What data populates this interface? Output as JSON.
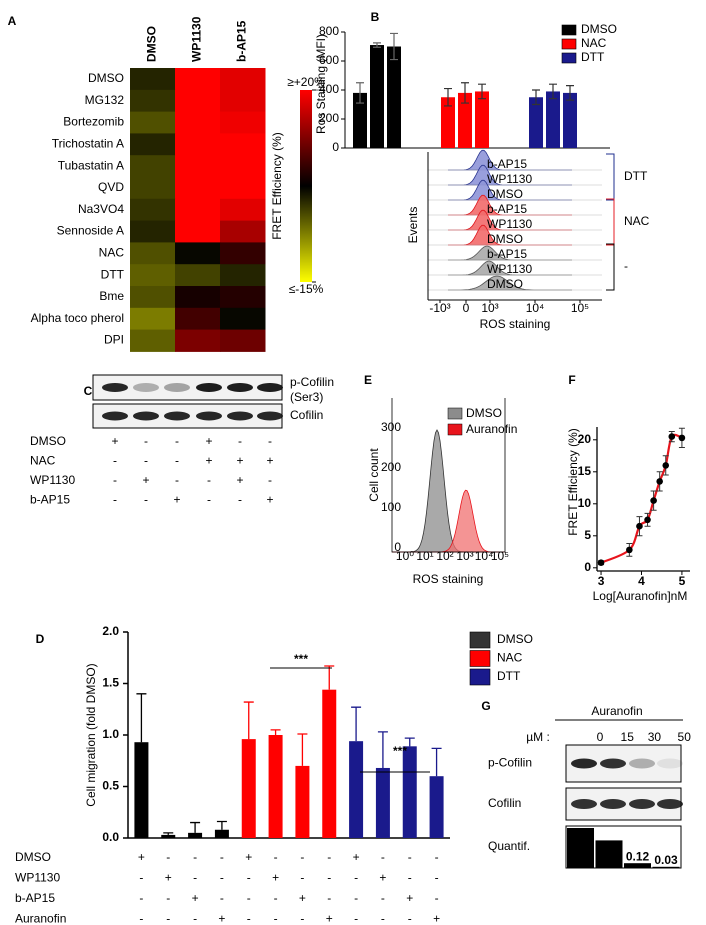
{
  "panel_labels": [
    "A",
    "B",
    "C",
    "D",
    "E",
    "F",
    "G"
  ],
  "chart_data": [
    {
      "type": "heatmap",
      "columns": [
        "DMSO",
        "WP1130",
        "b-AP15"
      ],
      "rows": [
        "DMSO",
        "MG132",
        "Bortezomib",
        "Trichostatin A",
        "Tubastatin A",
        "QVD",
        "Na3VO4",
        "Sennoside A",
        "NAC",
        "DTT",
        "Bme",
        "Alpha toco pherol",
        "DPI"
      ],
      "values": [
        [
          0,
          20,
          18
        ],
        [
          -1,
          20,
          18
        ],
        [
          -3,
          20,
          19
        ],
        [
          0,
          20,
          20
        ],
        [
          -2,
          20,
          20
        ],
        [
          -2,
          20,
          20
        ],
        [
          -1,
          20,
          18
        ],
        [
          0,
          20,
          14
        ],
        [
          -3,
          2,
          6
        ],
        [
          -4,
          -2,
          0
        ],
        [
          -3,
          4,
          5
        ],
        [
          -6,
          7,
          2
        ],
        [
          -4,
          11,
          10
        ]
      ],
      "zlim": [
        -15,
        20
      ],
      "colors": [
        "#ffff00",
        "#000000",
        "#ff0000"
      ],
      "colorbar_ticks": [
        {
          "value": 20,
          "label": "≥+20%"
        },
        {
          "value": -15,
          "label": "≤-15%"
        }
      ],
      "colorbar_label": "FRET Efficiency (%)"
    },
    {
      "type": "bar",
      "ylabel": "Ros Staining (MFI)",
      "ylim": [
        0,
        800
      ],
      "yticks": [
        0,
        200,
        400,
        600,
        800
      ],
      "series": [
        {
          "name": "DMSO",
          "color": "#000000",
          "values": [
            380,
            710,
            700
          ],
          "errors": [
            70,
            15,
            90
          ]
        },
        {
          "name": "NAC",
          "color": "#ff0000",
          "values": [
            350,
            380,
            390
          ],
          "errors": [
            60,
            70,
            50
          ]
        },
        {
          "name": "DTT",
          "color": "#1a1a8c",
          "values": [
            350,
            390,
            380
          ],
          "errors": [
            50,
            50,
            50
          ]
        }
      ]
    },
    {
      "type": "bar",
      "ylabel": "Cell migration (fold DMSO)",
      "ylim": [
        0,
        2
      ],
      "yticks": [
        {
          "value": 0,
          "label": "0.0"
        },
        {
          "value": 0.5,
          "label": "0.5"
        },
        {
          "value": 1,
          "label": "1.0"
        },
        {
          "value": 1.5,
          "label": "1.5"
        },
        {
          "value": 2,
          "label": "2.0"
        }
      ],
      "values": [
        0.93,
        0.03,
        0.05,
        0.08,
        0.96,
        1.0,
        0.7,
        1.44,
        0.94,
        0.68,
        0.89,
        0.6
      ],
      "errors": [
        0.47,
        0.02,
        0.1,
        0.08,
        0.36,
        0.05,
        0.31,
        0.23,
        0.33,
        0.35,
        0.08,
        0.27
      ],
      "colors": [
        "#000000",
        "#000000",
        "#000000",
        "#000000",
        "#ff0000",
        "#ff0000",
        "#ff0000",
        "#ff0000",
        "#1a1a8c",
        "#1a1a8c",
        "#1a1a8c",
        "#1a1a8c"
      ],
      "legend": [
        {
          "name": "DMSO",
          "color": "#333333"
        },
        {
          "name": "NAC",
          "color": "#ff0000"
        },
        {
          "name": "DTT",
          "color": "#1a1a8c"
        }
      ],
      "annotations": [
        "***",
        "***"
      ],
      "treatments": [
        {
          "name": "DMSO",
          "signs": [
            "+",
            "-",
            "-",
            "-",
            "+",
            "-",
            "-",
            "-",
            "+",
            "-",
            "-",
            "-"
          ]
        },
        {
          "name": "WP1130",
          "signs": [
            "-",
            "+",
            "-",
            "-",
            "-",
            "+",
            "-",
            "-",
            "-",
            "+",
            "-",
            "-"
          ]
        },
        {
          "name": "b-AP15",
          "signs": [
            "-",
            "-",
            "+",
            "-",
            "-",
            "-",
            "+",
            "-",
            "-",
            "-",
            "+",
            "-"
          ]
        },
        {
          "name": "Auranofin",
          "signs": [
            "-",
            "-",
            "-",
            "+",
            "-",
            "-",
            "-",
            "+",
            "-",
            "-",
            "-",
            "+"
          ]
        }
      ]
    },
    {
      "type": "scatter",
      "xlabel": "Log[Auranofin]nM",
      "ylabel": "FRET Efficiency (%)",
      "xlim": [
        2.9,
        5.2
      ],
      "xticks": [
        3,
        4,
        5
      ],
      "ylim": [
        -0.5,
        22
      ],
      "yticks": [
        0,
        5,
        10,
        15,
        20
      ],
      "x": [
        3,
        3.7,
        3.95,
        4.15,
        4.3,
        4.45,
        4.6,
        4.75,
        5
      ],
      "y": [
        0.8,
        2.8,
        6.5,
        7.5,
        10.5,
        13.5,
        16,
        20.5,
        20.3
      ],
      "errors": [
        0.3,
        1,
        1.5,
        1,
        1.5,
        1.5,
        1.5,
        0.8,
        1.5
      ],
      "color": "#000000",
      "fit_color": "#e8141c"
    },
    {
      "type": "bar",
      "title": "Auranofin",
      "unit_label": "µM :",
      "label": "Quantif.",
      "categories": [
        "0",
        "15",
        "30",
        "50"
      ],
      "values": [
        1,
        0.69,
        0.12,
        0.03
      ],
      "color": "#000000"
    }
  ],
  "panel_b_flow": {
    "ylabel": "Events",
    "xlabel": "ROS staining",
    "xticks": [
      "-10³",
      "0",
      "10³",
      "10⁴",
      "10⁵"
    ],
    "groups": [
      {
        "name": "DTT",
        "color": "#1f2f8f",
        "samples": [
          "b-AP15",
          "WP1130",
          "DMSO"
        ]
      },
      {
        "name": "NAC",
        "color": "#e41e26",
        "samples": [
          "b-AP15",
          "WP1130",
          "DMSO"
        ]
      },
      {
        "name": "-",
        "color": "#000000",
        "samples": [
          "b-AP15",
          "WP1130",
          "DMSO"
        ]
      }
    ]
  },
  "panel_c_blot": {
    "bands": [
      [
        "p-Cofilin",
        "(Ser3)"
      ],
      [
        "Cofilin"
      ]
    ],
    "conditions": [
      {
        "name": "DMSO",
        "signs": [
          "+",
          "-",
          "-",
          "+",
          "-",
          "-"
        ]
      },
      {
        "name": "NAC",
        "signs": [
          "-",
          "-",
          "-",
          "+",
          "+",
          "+"
        ]
      },
      {
        "name": "WP1130",
        "signs": [
          "-",
          "+",
          "-",
          "-",
          "+",
          "-"
        ]
      },
      {
        "name": "b-AP15",
        "signs": [
          "-",
          "-",
          "+",
          "-",
          "-",
          "+"
        ]
      }
    ]
  },
  "panel_e_flow": {
    "ylabel": "Cell count",
    "xlabel": "ROS staining",
    "yticks": [
      "300",
      "200",
      "100",
      "0"
    ],
    "xticks": [
      "10⁰",
      "10¹",
      "10²",
      "10³",
      "10⁴",
      "10⁵"
    ],
    "legend": [
      {
        "name": "DMSO",
        "color": "#8c8c8c"
      },
      {
        "name": "Auranofin",
        "color": "#e8141c"
      }
    ]
  },
  "panel_g_blot": {
    "bands": [
      "p-Cofilin",
      "Cofilin"
    ]
  }
}
